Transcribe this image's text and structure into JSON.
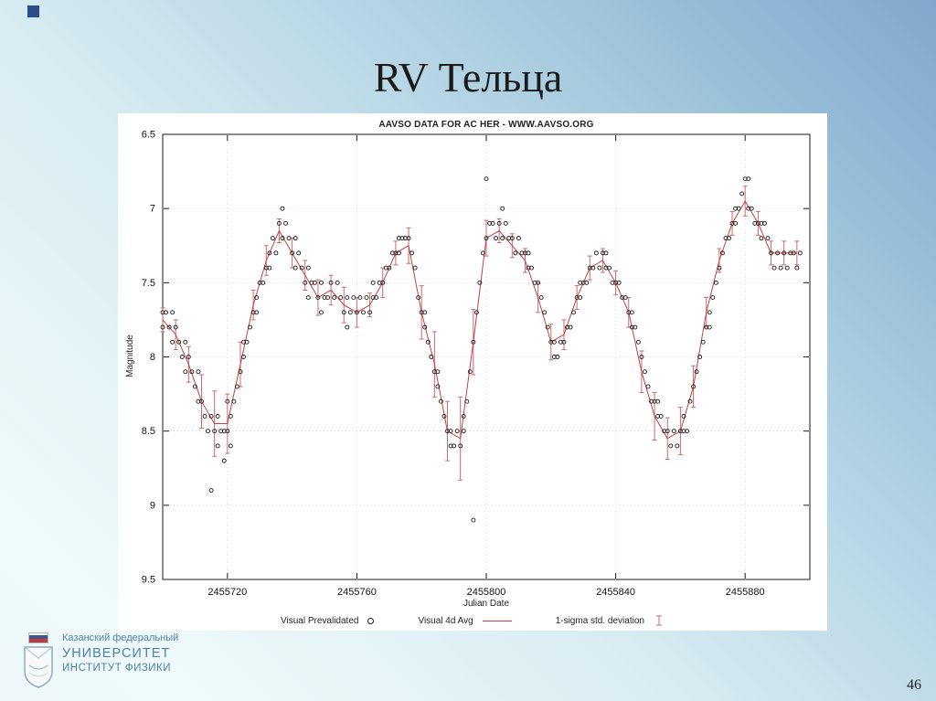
{
  "slide": {
    "title": "RV Тельца",
    "page_number": "46"
  },
  "logo": {
    "line1": "Казанский федеральный",
    "line2": "УНИВЕРСИТЕТ",
    "line3": "ИНСТИТУТ ФИЗИКИ"
  },
  "chart_data": {
    "type": "scatter",
    "title": "AAVSO DATA FOR AC HER - WWW.AAVSO.ORG",
    "xlabel": "Julian Date",
    "ylabel": "Magnitude",
    "xlim": [
      2455700,
      2455900
    ],
    "ylim": [
      6.5,
      9.5
    ],
    "y_axis_inverted_magnitude": true,
    "grid": true,
    "xticks": [
      2455720,
      2455760,
      2455800,
      2455840,
      2455880
    ],
    "yticks": [
      6.5,
      7,
      7.5,
      8,
      8.5,
      9,
      9.5
    ],
    "legend_position": "below",
    "legend": [
      {
        "label": "Visual Prevalidated",
        "type": "points"
      },
      {
        "label": "Visual 4d Avg",
        "type": "line"
      },
      {
        "label": "1-sigma std. deviation",
        "type": "errorbars"
      }
    ],
    "colors": {
      "avg_line": "#c04040",
      "error_bar": "#cf6a6a",
      "point_stroke": "#1a1a1a"
    },
    "series": [
      {
        "name": "Visual Prevalidated",
        "type": "scatter",
        "points": [
          [
            2455700,
            7.7
          ],
          [
            2455700,
            7.8
          ],
          [
            2455701,
            7.7
          ],
          [
            2455702,
            7.8
          ],
          [
            2455703,
            7.9
          ],
          [
            2455703,
            7.7
          ],
          [
            2455704,
            7.8
          ],
          [
            2455705,
            7.9
          ],
          [
            2455706,
            8.0
          ],
          [
            2455707,
            8.1
          ],
          [
            2455707,
            7.9
          ],
          [
            2455708,
            8.0
          ],
          [
            2455709,
            8.1
          ],
          [
            2455710,
            8.2
          ],
          [
            2455711,
            8.3
          ],
          [
            2455711,
            8.1
          ],
          [
            2455712,
            8.3
          ],
          [
            2455713,
            8.4
          ],
          [
            2455714,
            8.5
          ],
          [
            2455715,
            8.9
          ],
          [
            2455715,
            8.4
          ],
          [
            2455716,
            8.5
          ],
          [
            2455717,
            8.6
          ],
          [
            2455717,
            8.4
          ],
          [
            2455718,
            8.5
          ],
          [
            2455719,
            8.7
          ],
          [
            2455719,
            8.5
          ],
          [
            2455720,
            8.5
          ],
          [
            2455720,
            8.3
          ],
          [
            2455721,
            8.6
          ],
          [
            2455721,
            8.4
          ],
          [
            2455722,
            8.3
          ],
          [
            2455723,
            8.2
          ],
          [
            2455724,
            8.1
          ],
          [
            2455725,
            8.0
          ],
          [
            2455725,
            7.9
          ],
          [
            2455726,
            7.9
          ],
          [
            2455727,
            7.8
          ],
          [
            2455728,
            7.7
          ],
          [
            2455729,
            7.6
          ],
          [
            2455729,
            7.7
          ],
          [
            2455730,
            7.5
          ],
          [
            2455731,
            7.5
          ],
          [
            2455732,
            7.4
          ],
          [
            2455733,
            7.3
          ],
          [
            2455733,
            7.4
          ],
          [
            2455734,
            7.2
          ],
          [
            2455735,
            7.3
          ],
          [
            2455736,
            7.1
          ],
          [
            2455737,
            7.0
          ],
          [
            2455737,
            7.2
          ],
          [
            2455738,
            7.1
          ],
          [
            2455739,
            7.2
          ],
          [
            2455740,
            7.3
          ],
          [
            2455741,
            7.4
          ],
          [
            2455741,
            7.2
          ],
          [
            2455742,
            7.3
          ],
          [
            2455743,
            7.4
          ],
          [
            2455744,
            7.5
          ],
          [
            2455745,
            7.4
          ],
          [
            2455745,
            7.6
          ],
          [
            2455746,
            7.5
          ],
          [
            2455747,
            7.5
          ],
          [
            2455748,
            7.6
          ],
          [
            2455749,
            7.7
          ],
          [
            2455749,
            7.5
          ],
          [
            2455750,
            7.6
          ],
          [
            2455751,
            7.6
          ],
          [
            2455752,
            7.5
          ],
          [
            2455753,
            7.6
          ],
          [
            2455754,
            7.5
          ],
          [
            2455755,
            7.6
          ],
          [
            2455756,
            7.7
          ],
          [
            2455757,
            7.6
          ],
          [
            2455757,
            7.8
          ],
          [
            2455758,
            7.7
          ],
          [
            2455759,
            7.6
          ],
          [
            2455760,
            7.7
          ],
          [
            2455761,
            7.6
          ],
          [
            2455762,
            7.7
          ],
          [
            2455763,
            7.6
          ],
          [
            2455764,
            7.7
          ],
          [
            2455765,
            7.6
          ],
          [
            2455765,
            7.5
          ],
          [
            2455766,
            7.6
          ],
          [
            2455767,
            7.5
          ],
          [
            2455768,
            7.5
          ],
          [
            2455769,
            7.4
          ],
          [
            2455770,
            7.4
          ],
          [
            2455771,
            7.3
          ],
          [
            2455772,
            7.3
          ],
          [
            2455773,
            7.2
          ],
          [
            2455773,
            7.3
          ],
          [
            2455774,
            7.2
          ],
          [
            2455775,
            7.2
          ],
          [
            2455776,
            7.2
          ],
          [
            2455777,
            7.3
          ],
          [
            2455778,
            7.4
          ],
          [
            2455779,
            7.6
          ],
          [
            2455780,
            7.7
          ],
          [
            2455781,
            7.8
          ],
          [
            2455781,
            7.7
          ],
          [
            2455782,
            7.9
          ],
          [
            2455783,
            8.0
          ],
          [
            2455784,
            8.1
          ],
          [
            2455785,
            8.2
          ],
          [
            2455785,
            8.1
          ],
          [
            2455786,
            8.3
          ],
          [
            2455787,
            8.4
          ],
          [
            2455788,
            8.5
          ],
          [
            2455789,
            8.6
          ],
          [
            2455789,
            8.5
          ],
          [
            2455790,
            8.6
          ],
          [
            2455791,
            8.5
          ],
          [
            2455792,
            8.6
          ],
          [
            2455793,
            8.5
          ],
          [
            2455793,
            8.4
          ],
          [
            2455794,
            8.3
          ],
          [
            2455795,
            8.1
          ],
          [
            2455796,
            7.9
          ],
          [
            2455796,
            9.1
          ],
          [
            2455797,
            7.7
          ],
          [
            2455798,
            7.5
          ],
          [
            2455799,
            7.3
          ],
          [
            2455800,
            7.2
          ],
          [
            2455800,
            6.8
          ],
          [
            2455801,
            7.1
          ],
          [
            2455802,
            7.1
          ],
          [
            2455803,
            7.2
          ],
          [
            2455804,
            7.1
          ],
          [
            2455805,
            7.2
          ],
          [
            2455805,
            7.0
          ],
          [
            2455806,
            7.1
          ],
          [
            2455807,
            7.2
          ],
          [
            2455808,
            7.2
          ],
          [
            2455809,
            7.3
          ],
          [
            2455810,
            7.2
          ],
          [
            2455811,
            7.3
          ],
          [
            2455812,
            7.3
          ],
          [
            2455813,
            7.4
          ],
          [
            2455813,
            7.3
          ],
          [
            2455814,
            7.4
          ],
          [
            2455815,
            7.5
          ],
          [
            2455816,
            7.5
          ],
          [
            2455817,
            7.6
          ],
          [
            2455818,
            7.7
          ],
          [
            2455819,
            7.8
          ],
          [
            2455820,
            7.9
          ],
          [
            2455821,
            7.9
          ],
          [
            2455821,
            8.0
          ],
          [
            2455822,
            8.0
          ],
          [
            2455823,
            7.9
          ],
          [
            2455824,
            7.9
          ],
          [
            2455825,
            7.8
          ],
          [
            2455826,
            7.8
          ],
          [
            2455827,
            7.7
          ],
          [
            2455828,
            7.6
          ],
          [
            2455829,
            7.6
          ],
          [
            2455829,
            7.5
          ],
          [
            2455830,
            7.5
          ],
          [
            2455831,
            7.5
          ],
          [
            2455832,
            7.4
          ],
          [
            2455833,
            7.4
          ],
          [
            2455834,
            7.3
          ],
          [
            2455835,
            7.4
          ],
          [
            2455836,
            7.3
          ],
          [
            2455837,
            7.4
          ],
          [
            2455837,
            7.3
          ],
          [
            2455838,
            7.4
          ],
          [
            2455839,
            7.5
          ],
          [
            2455840,
            7.5
          ],
          [
            2455841,
            7.5
          ],
          [
            2455842,
            7.6
          ],
          [
            2455843,
            7.6
          ],
          [
            2455844,
            7.7
          ],
          [
            2455845,
            7.8
          ],
          [
            2455845,
            7.7
          ],
          [
            2455846,
            7.8
          ],
          [
            2455847,
            7.9
          ],
          [
            2455848,
            8.0
          ],
          [
            2455849,
            8.1
          ],
          [
            2455850,
            8.2
          ],
          [
            2455851,
            8.3
          ],
          [
            2455852,
            8.3
          ],
          [
            2455853,
            8.4
          ],
          [
            2455853,
            8.3
          ],
          [
            2455854,
            8.4
          ],
          [
            2455855,
            8.5
          ],
          [
            2455856,
            8.5
          ],
          [
            2455857,
            8.6
          ],
          [
            2455858,
            8.5
          ],
          [
            2455859,
            8.6
          ],
          [
            2455860,
            8.5
          ],
          [
            2455861,
            8.4
          ],
          [
            2455861,
            8.5
          ],
          [
            2455862,
            8.5
          ],
          [
            2455863,
            8.3
          ],
          [
            2455864,
            8.2
          ],
          [
            2455865,
            8.1
          ],
          [
            2455866,
            8.0
          ],
          [
            2455867,
            7.9
          ],
          [
            2455868,
            7.8
          ],
          [
            2455869,
            7.7
          ],
          [
            2455869,
            7.8
          ],
          [
            2455870,
            7.6
          ],
          [
            2455871,
            7.5
          ],
          [
            2455872,
            7.4
          ],
          [
            2455873,
            7.3
          ],
          [
            2455874,
            7.2
          ],
          [
            2455875,
            7.2
          ],
          [
            2455876,
            7.1
          ],
          [
            2455877,
            7.1
          ],
          [
            2455877,
            7.0
          ],
          [
            2455878,
            7.0
          ],
          [
            2455879,
            6.9
          ],
          [
            2455880,
            6.8
          ],
          [
            2455881,
            6.8
          ],
          [
            2455881,
            7.0
          ],
          [
            2455882,
            7.0
          ],
          [
            2455883,
            7.1
          ],
          [
            2455884,
            7.1
          ],
          [
            2455885,
            7.2
          ],
          [
            2455885,
            7.1
          ],
          [
            2455886,
            7.1
          ],
          [
            2455887,
            7.2
          ],
          [
            2455888,
            7.3
          ],
          [
            2455889,
            7.4
          ],
          [
            2455890,
            7.3
          ],
          [
            2455891,
            7.4
          ],
          [
            2455892,
            7.3
          ],
          [
            2455893,
            7.4
          ],
          [
            2455894,
            7.3
          ],
          [
            2455895,
            7.3
          ],
          [
            2455896,
            7.4
          ],
          [
            2455897,
            7.3
          ]
        ]
      },
      {
        "name": "Visual 4d Avg",
        "type": "line_errorbars",
        "x": [
          2455700,
          2455704,
          2455708,
          2455712,
          2455716,
          2455720,
          2455724,
          2455728,
          2455732,
          2455736,
          2455740,
          2455744,
          2455748,
          2455752,
          2455756,
          2455760,
          2455764,
          2455768,
          2455772,
          2455776,
          2455780,
          2455784,
          2455788,
          2455792,
          2455796,
          2455800,
          2455804,
          2455808,
          2455812,
          2455816,
          2455820,
          2455824,
          2455828,
          2455832,
          2455836,
          2455840,
          2455844,
          2455848,
          2455852,
          2455856,
          2455860,
          2455864,
          2455868,
          2455872,
          2455876,
          2455880,
          2455884,
          2455888,
          2455892,
          2455896
        ],
        "y": [
          7.75,
          7.85,
          8.05,
          8.3,
          8.45,
          8.45,
          8.05,
          7.65,
          7.35,
          7.15,
          7.3,
          7.45,
          7.6,
          7.55,
          7.65,
          7.7,
          7.65,
          7.5,
          7.3,
          7.25,
          7.7,
          8.05,
          8.5,
          8.55,
          7.9,
          7.2,
          7.15,
          7.25,
          7.35,
          7.6,
          7.9,
          7.85,
          7.6,
          7.4,
          7.35,
          7.5,
          7.7,
          8.1,
          8.4,
          8.55,
          8.5,
          8.2,
          7.7,
          7.35,
          7.1,
          6.95,
          7.1,
          7.3,
          7.3,
          7.3
        ],
        "sigma": [
          0.08,
          0.1,
          0.12,
          0.18,
          0.22,
          0.2,
          0.15,
          0.1,
          0.1,
          0.08,
          0.1,
          0.1,
          0.12,
          0.1,
          0.12,
          0.1,
          0.08,
          0.1,
          0.08,
          0.12,
          0.18,
          0.22,
          0.2,
          0.28,
          0.22,
          0.12,
          0.08,
          0.08,
          0.08,
          0.1,
          0.12,
          0.1,
          0.08,
          0.08,
          0.08,
          0.08,
          0.1,
          0.14,
          0.16,
          0.14,
          0.16,
          0.14,
          0.1,
          0.08,
          0.08,
          0.1,
          0.08,
          0.08,
          0.08,
          0.08
        ]
      }
    ]
  }
}
